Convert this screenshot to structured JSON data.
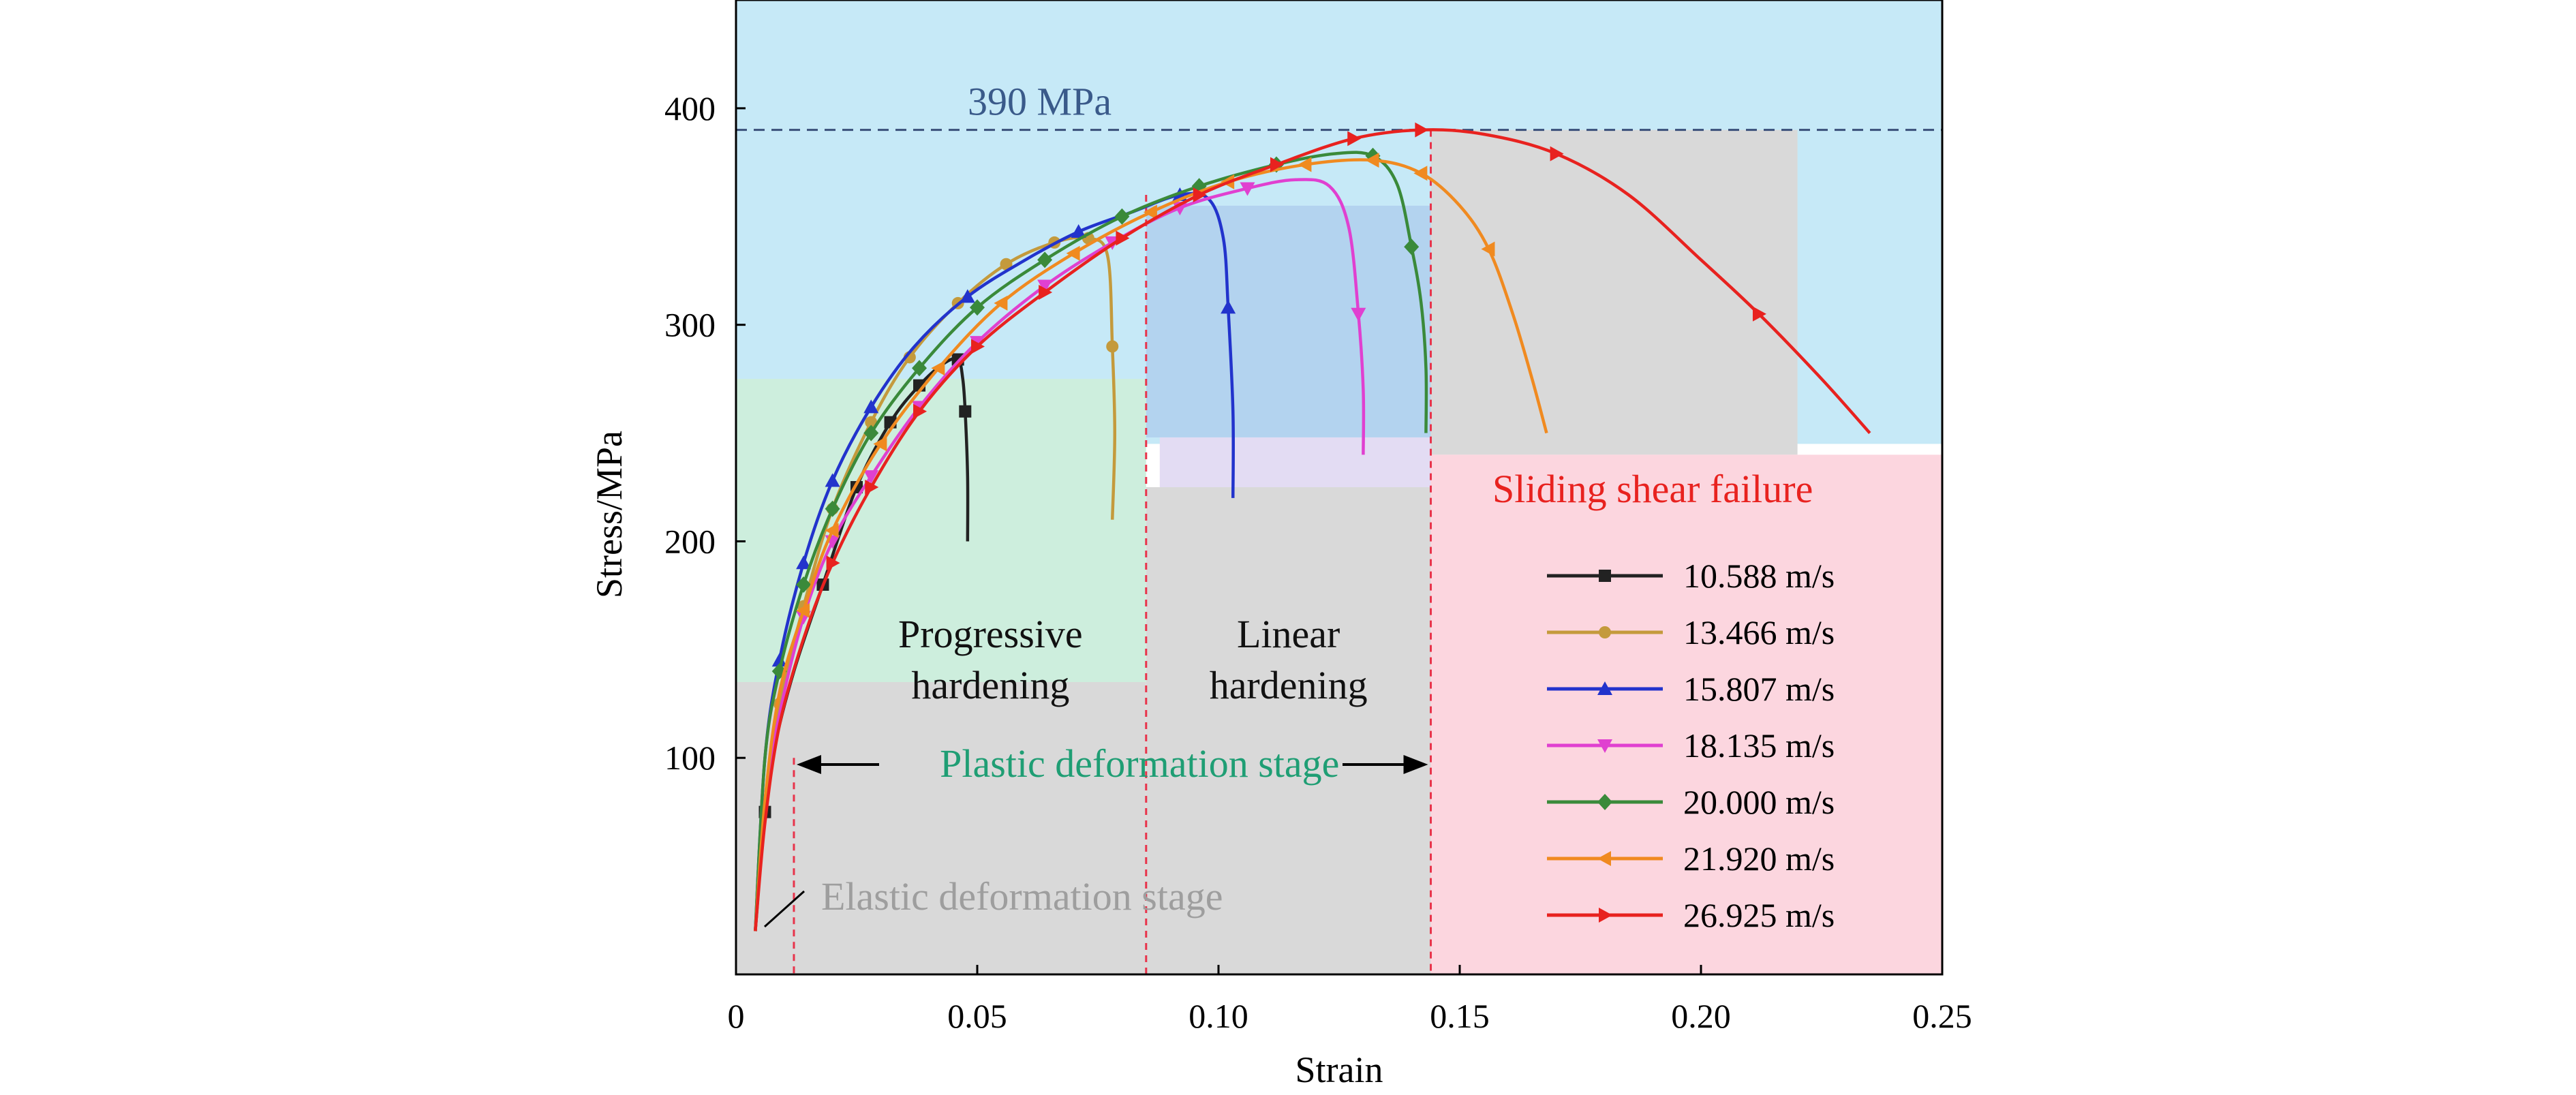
{
  "colors": {
    "region_blue": "#c6e9f7",
    "region_blue_mid": "#b3d3ef",
    "region_green": "#cdeedd",
    "region_gray": "#d9d9d9",
    "region_pink": "#fcd6df",
    "region_lavender": "#e3dcf3",
    "ref_line": "#3a4f7a",
    "divider_red": "#e8334a",
    "text_blue": "#3a5a8a",
    "text_green": "#1f9e74",
    "text_red": "#e8221f",
    "text_gray": "#9e9e9e"
  },
  "chart_data": {
    "type": "line",
    "xlabel": "Strain",
    "ylabel": "Stress/MPa",
    "xlim": [
      0,
      0.25
    ],
    "ylim": [
      0,
      450
    ],
    "xticks": [
      0,
      0.05,
      0.1,
      0.15,
      0.2,
      0.25
    ],
    "xtick_labels": [
      "0",
      "0.05",
      "0.10",
      "0.15",
      "0.20",
      "0.25"
    ],
    "yticks": [
      100,
      200,
      300,
      400
    ],
    "ytick_labels": [
      "100",
      "200",
      "300",
      "400"
    ],
    "grid": false,
    "legend_position": "bottom-right",
    "reference_line": {
      "y": 390,
      "label": "390 MPa"
    },
    "stage_boundaries": [
      0.012,
      0.085,
      0.144
    ],
    "annotations": {
      "progressive_line1": "Progressive",
      "progressive_line2": "hardening",
      "linear_line1": "Linear",
      "linear_line2": "hardening",
      "plastic": "Plastic deformation stage",
      "elastic": "Elastic deformation stage",
      "sliding": "Sliding shear failure"
    },
    "series": [
      {
        "name": "10.588 m/s",
        "color": "#222222",
        "marker": "square",
        "x": [
          0.004,
          0.006,
          0.008,
          0.012,
          0.018,
          0.025,
          0.032,
          0.038,
          0.043,
          0.046,
          0.047,
          0.0475,
          0.048,
          0.048
        ],
        "y": [
          20,
          75,
          105,
          140,
          180,
          225,
          255,
          272,
          282,
          284,
          275,
          260,
          230,
          200
        ],
        "markers_at": [
          1,
          4,
          5,
          6,
          7,
          9,
          11
        ]
      },
      {
        "name": "13.466 m/s",
        "color": "#c49a3c",
        "marker": "circle",
        "x": [
          0.004,
          0.006,
          0.009,
          0.014,
          0.02,
          0.028,
          0.036,
          0.046,
          0.056,
          0.066,
          0.073,
          0.077,
          0.078,
          0.0785,
          0.078
        ],
        "y": [
          20,
          80,
          125,
          170,
          215,
          255,
          285,
          310,
          328,
          338,
          340,
          332,
          290,
          250,
          210
        ],
        "markers_at": [
          2,
          3,
          4,
          5,
          6,
          7,
          8,
          9,
          10,
          12
        ]
      },
      {
        "name": "15.807 m/s",
        "color": "#2233cc",
        "marker": "triangle-up",
        "x": [
          0.004,
          0.006,
          0.009,
          0.014,
          0.02,
          0.028,
          0.037,
          0.048,
          0.06,
          0.071,
          0.082,
          0.092,
          0.098,
          0.101,
          0.102,
          0.103,
          0.103
        ],
        "y": [
          20,
          100,
          145,
          190,
          228,
          262,
          290,
          313,
          330,
          343,
          352,
          360,
          358,
          340,
          308,
          260,
          220
        ],
        "markers_at": [
          2,
          3,
          4,
          5,
          7,
          9,
          11,
          14
        ]
      },
      {
        "name": "18.135 m/s",
        "color": "#e040d0",
        "marker": "triangle-down",
        "x": [
          0.004,
          0.006,
          0.009,
          0.014,
          0.02,
          0.028,
          0.038,
          0.05,
          0.064,
          0.078,
          0.092,
          0.106,
          0.116,
          0.123,
          0.127,
          0.129,
          0.13,
          0.13
        ],
        "y": [
          20,
          80,
          120,
          165,
          200,
          230,
          262,
          292,
          318,
          338,
          354,
          363,
          367,
          364,
          345,
          305,
          270,
          240
        ],
        "markers_at": [
          3,
          4,
          5,
          6,
          7,
          8,
          9,
          10,
          11,
          15
        ]
      },
      {
        "name": "20.000 m/s",
        "color": "#3a8a3a",
        "marker": "diamond",
        "x": [
          0.004,
          0.006,
          0.009,
          0.014,
          0.02,
          0.028,
          0.038,
          0.05,
          0.064,
          0.08,
          0.096,
          0.112,
          0.124,
          0.132,
          0.137,
          0.14,
          0.142,
          0.143,
          0.143
        ],
        "y": [
          20,
          100,
          140,
          180,
          215,
          250,
          280,
          308,
          330,
          350,
          364,
          374,
          379,
          378,
          365,
          336,
          310,
          280,
          250
        ],
        "markers_at": [
          2,
          3,
          4,
          5,
          6,
          7,
          8,
          9,
          10,
          11,
          13,
          15
        ]
      },
      {
        "name": "21.920 m/s",
        "color": "#f08a20",
        "marker": "triangle-left",
        "x": [
          0.004,
          0.006,
          0.009,
          0.014,
          0.02,
          0.03,
          0.042,
          0.055,
          0.07,
          0.086,
          0.102,
          0.118,
          0.132,
          0.142,
          0.15,
          0.156,
          0.161,
          0.165,
          0.168
        ],
        "y": [
          20,
          80,
          130,
          168,
          205,
          245,
          280,
          310,
          333,
          352,
          366,
          374,
          376,
          370,
          355,
          335,
          305,
          275,
          250
        ],
        "markers_at": [
          3,
          4,
          5,
          6,
          7,
          8,
          9,
          10,
          11,
          12,
          13,
          15
        ]
      },
      {
        "name": "26.925 m/s",
        "color": "#e8221f",
        "marker": "triangle-right",
        "x": [
          0.004,
          0.006,
          0.009,
          0.014,
          0.02,
          0.028,
          0.038,
          0.05,
          0.064,
          0.08,
          0.096,
          0.112,
          0.128,
          0.142,
          0.155,
          0.17,
          0.185,
          0.2,
          0.212,
          0.225,
          0.235
        ],
        "y": [
          20,
          70,
          115,
          155,
          190,
          225,
          260,
          290,
          315,
          340,
          360,
          374,
          386,
          390,
          388,
          379,
          360,
          330,
          305,
          275,
          250
        ],
        "markers_at": [
          4,
          5,
          6,
          7,
          8,
          9,
          10,
          11,
          12,
          13,
          15,
          18
        ]
      }
    ]
  }
}
